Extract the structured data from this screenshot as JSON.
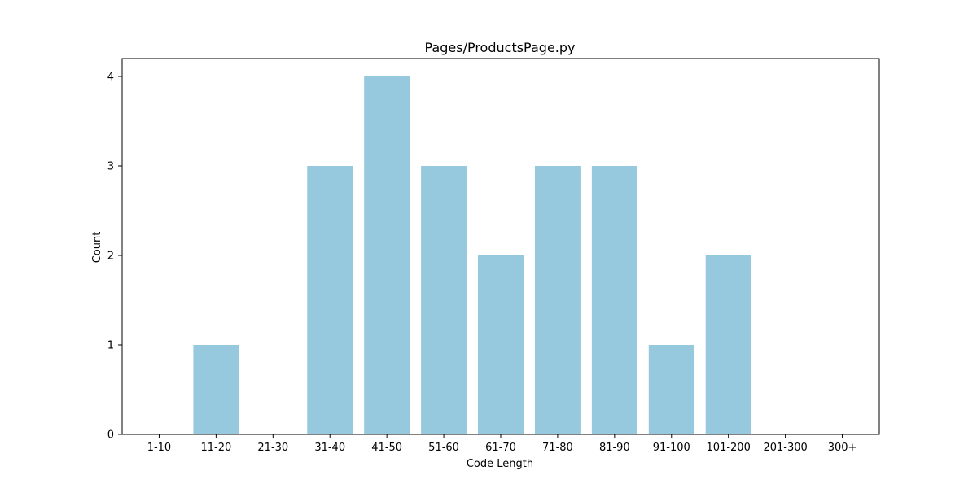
{
  "chart_data": {
    "type": "bar",
    "title": "Pages/ProductsPage.py",
    "xlabel": "Code Length",
    "ylabel": "Count",
    "categories": [
      "1-10",
      "11-20",
      "21-30",
      "31-40",
      "41-50",
      "51-60",
      "61-70",
      "71-80",
      "81-90",
      "91-100",
      "101-200",
      "201-300",
      "300+"
    ],
    "values": [
      0,
      1,
      0,
      3,
      4,
      3,
      2,
      3,
      3,
      1,
      2,
      0,
      0
    ],
    "ylim": [
      0,
      4.2
    ],
    "yticks": [
      "0",
      "1",
      "2",
      "3",
      "4"
    ],
    "bar_color": "#96c9dd",
    "grid": false,
    "legend": "none"
  }
}
